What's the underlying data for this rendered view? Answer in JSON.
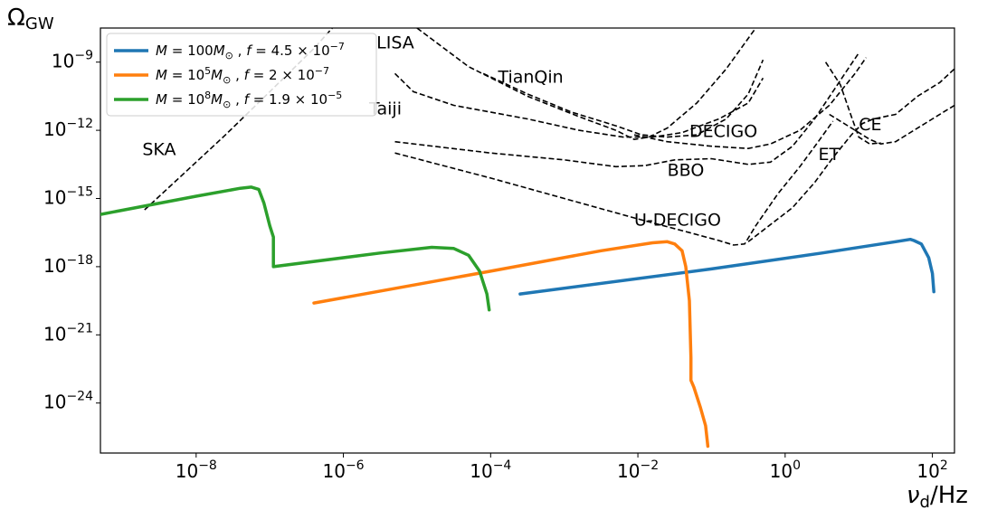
{
  "chart_data": {
    "type": "line",
    "xlabel_main": "ν",
    "xlabel_sub": "d",
    "xlabel_rest": "/Hz",
    "ylabel_main": "Ω",
    "ylabel_sub": "GW",
    "x_scale": "log",
    "y_scale": "log",
    "x_log_range": [
      -9.3,
      2.3
    ],
    "y_log_range": [
      -26.2,
      -7.5
    ],
    "grid": false,
    "legend_position": "top-left",
    "x_ticks": [
      {
        "exp": -8,
        "base": "10",
        "sup": "−8"
      },
      {
        "exp": -6,
        "base": "10",
        "sup": "−6"
      },
      {
        "exp": -4,
        "base": "10",
        "sup": "−4"
      },
      {
        "exp": -2,
        "base": "10",
        "sup": "−2"
      },
      {
        "exp": 0,
        "base": "10",
        "sup": "0"
      },
      {
        "exp": 2,
        "base": "10",
        "sup": "2"
      }
    ],
    "y_ticks": [
      {
        "exp": -9,
        "base": "10",
        "sup": "−9"
      },
      {
        "exp": -12,
        "base": "10",
        "sup": "−12"
      },
      {
        "exp": -15,
        "base": "10",
        "sup": "−15"
      },
      {
        "exp": -18,
        "base": "10",
        "sup": "−18"
      },
      {
        "exp": -21,
        "base": "10",
        "sup": "−21"
      },
      {
        "exp": -24,
        "base": "10",
        "sup": "−24"
      }
    ],
    "series": [
      {
        "name": "M = 100M⊙ , f = 4.5 × 10⁻⁷",
        "color": "#1f77b4",
        "points": [
          [
            -3.6,
            -19.2
          ],
          [
            -1.0,
            -18.1
          ],
          [
            0.5,
            -17.4
          ],
          [
            1.5,
            -16.9
          ],
          [
            1.7,
            -16.8
          ],
          [
            1.75,
            -16.85
          ],
          [
            1.85,
            -17.0
          ],
          [
            1.95,
            -17.6
          ],
          [
            2.0,
            -18.3
          ],
          [
            2.02,
            -19.1
          ]
        ]
      },
      {
        "name": "M = 10⁵M⊙ , f = 2 × 10⁻⁷",
        "color": "#ff7f0e",
        "points": [
          [
            -6.4,
            -19.6
          ],
          [
            -4.0,
            -18.2
          ],
          [
            -2.5,
            -17.3
          ],
          [
            -1.8,
            -16.95
          ],
          [
            -1.6,
            -16.9
          ],
          [
            -1.5,
            -17.0
          ],
          [
            -1.4,
            -17.3
          ],
          [
            -1.35,
            -18.0
          ],
          [
            -1.3,
            -19.5
          ],
          [
            -1.28,
            -22.0
          ],
          [
            -1.28,
            -23.0
          ],
          [
            -1.24,
            -23.3
          ],
          [
            -1.15,
            -24.2
          ],
          [
            -1.08,
            -25.0
          ],
          [
            -1.05,
            -25.9
          ]
        ]
      },
      {
        "name": "M = 10⁸M⊙ , f = 1.9 × 10⁻⁵",
        "color": "#2ca02c",
        "points": [
          [
            -9.3,
            -15.7
          ],
          [
            -8.0,
            -14.9
          ],
          [
            -7.4,
            -14.55
          ],
          [
            -7.25,
            -14.5
          ],
          [
            -7.15,
            -14.6
          ],
          [
            -7.08,
            -15.2
          ],
          [
            -7.0,
            -16.2
          ],
          [
            -6.95,
            -16.7
          ],
          [
            -6.95,
            -18.0
          ],
          [
            -5.5,
            -17.4
          ],
          [
            -4.8,
            -17.15
          ],
          [
            -4.5,
            -17.2
          ],
          [
            -4.3,
            -17.5
          ],
          [
            -4.15,
            -18.2
          ],
          [
            -4.05,
            -19.2
          ],
          [
            -4.02,
            -19.9
          ]
        ]
      }
    ],
    "detectors": [
      {
        "name": "SKA",
        "points": [
          [
            -8.7,
            -15.5
          ],
          [
            -8.2,
            -14.0
          ],
          [
            -7.6,
            -12.2
          ],
          [
            -7.0,
            -10.3
          ],
          [
            -6.4,
            -8.4
          ],
          [
            -6.15,
            -7.5
          ]
        ]
      },
      {
        "name": "LISA",
        "points": [
          [
            -5.0,
            -7.5
          ],
          [
            -4.3,
            -9.2
          ],
          [
            -3.5,
            -10.5
          ],
          [
            -2.8,
            -11.4
          ],
          [
            -2.3,
            -12.0
          ],
          [
            -2.05,
            -12.4
          ],
          [
            -1.85,
            -12.3
          ],
          [
            -1.6,
            -11.9
          ],
          [
            -1.2,
            -10.8
          ],
          [
            -0.8,
            -9.3
          ],
          [
            -0.4,
            -7.5
          ]
        ]
      },
      {
        "name": "TianQin",
        "points": [
          [
            -4.1,
            -9.5
          ],
          [
            -3.5,
            -10.4
          ],
          [
            -2.9,
            -11.2
          ],
          [
            -2.3,
            -11.8
          ],
          [
            -1.95,
            -12.2
          ],
          [
            -1.6,
            -12.3
          ],
          [
            -1.2,
            -12.2
          ],
          [
            -0.8,
            -11.5
          ],
          [
            -0.5,
            -10.4
          ],
          [
            -0.3,
            -8.9
          ]
        ]
      },
      {
        "name": "Taiji",
        "points": [
          [
            -5.3,
            -9.5
          ],
          [
            -5.05,
            -10.3
          ],
          [
            -4.5,
            -10.9
          ],
          [
            -3.5,
            -11.5
          ],
          [
            -2.8,
            -12.0
          ],
          [
            -2.2,
            -12.3
          ],
          [
            -1.8,
            -12.3
          ],
          [
            -1.4,
            -12.1
          ],
          [
            -0.9,
            -11.5
          ],
          [
            -0.5,
            -10.8
          ],
          [
            -0.3,
            -9.7
          ]
        ]
      },
      {
        "name": "BBO",
        "points": [
          [
            -5.3,
            -12.5
          ],
          [
            -4.0,
            -13.0
          ],
          [
            -3.0,
            -13.3
          ],
          [
            -2.3,
            -13.6
          ],
          [
            -1.9,
            -13.55
          ],
          [
            -1.5,
            -13.3
          ],
          [
            -1.0,
            -13.25
          ],
          [
            -0.5,
            -13.5
          ],
          [
            -0.2,
            -13.4
          ],
          [
            0.1,
            -12.7
          ],
          [
            0.4,
            -11.5
          ],
          [
            0.75,
            -9.8
          ],
          [
            1.0,
            -8.6
          ]
        ]
      },
      {
        "name": "DECIGO",
        "points": [
          [
            -2.05,
            -12.2
          ],
          [
            -1.6,
            -12.5
          ],
          [
            -1.0,
            -12.7
          ],
          [
            -0.5,
            -12.8
          ],
          [
            -0.2,
            -12.6
          ],
          [
            0.2,
            -12.0
          ],
          [
            0.6,
            -10.9
          ],
          [
            0.95,
            -9.5
          ],
          [
            1.1,
            -8.8
          ]
        ]
      },
      {
        "name": "U-DECIGO",
        "points": [
          [
            -5.3,
            -13.0
          ],
          [
            -4.0,
            -14.1
          ],
          [
            -3.0,
            -15.0
          ],
          [
            -2.0,
            -15.9
          ],
          [
            -1.3,
            -16.5
          ],
          [
            -0.9,
            -16.85
          ],
          [
            -0.7,
            -17.05
          ],
          [
            -0.55,
            -17.0
          ],
          [
            -0.4,
            -16.2
          ],
          [
            -0.1,
            -14.8
          ],
          [
            0.2,
            -13.6
          ],
          [
            0.45,
            -12.5
          ],
          [
            0.65,
            -11.6
          ]
        ]
      },
      {
        "name": "ET",
        "points": [
          [
            -0.5,
            -16.9
          ],
          [
            0.1,
            -15.4
          ],
          [
            0.4,
            -14.3
          ],
          [
            0.65,
            -13.2
          ],
          [
            0.9,
            -12.2
          ],
          [
            1.05,
            -11.7
          ],
          [
            1.2,
            -11.5
          ],
          [
            1.5,
            -11.3
          ],
          [
            1.8,
            -10.5
          ],
          [
            2.1,
            -9.9
          ],
          [
            2.3,
            -9.3
          ]
        ]
      },
      {
        "name": "CE",
        "points": [
          [
            0.6,
            -11.3
          ],
          [
            0.9,
            -11.9
          ],
          [
            1.15,
            -12.4
          ],
          [
            1.3,
            -12.6
          ],
          [
            1.5,
            -12.5
          ],
          [
            1.75,
            -12.0
          ],
          [
            2.0,
            -11.5
          ],
          [
            2.3,
            -10.9
          ]
        ]
      },
      {
        "name": "ET_branch",
        "points": [
          [
            0.55,
            -9.0
          ],
          [
            0.75,
            -10.0
          ],
          [
            0.9,
            -11.4
          ],
          [
            1.0,
            -12.3
          ],
          [
            1.15,
            -12.6
          ],
          [
            1.3,
            -12.55
          ]
        ]
      }
    ],
    "detector_labels": [
      {
        "text": "SKA",
        "x": -8.73,
        "y": -13.1
      },
      {
        "text": "LISA",
        "x": -5.55,
        "y": -8.4
      },
      {
        "text": "TianQin",
        "x": -3.9,
        "y": -9.9
      },
      {
        "text": "Taiji",
        "x": -5.65,
        "y": -11.3
      },
      {
        "text": "DECIGO",
        "x": -1.3,
        "y": -12.3
      },
      {
        "text": "BBO",
        "x": -1.6,
        "y": -14.0
      },
      {
        "text": "U-DECIGO",
        "x": -2.05,
        "y": -16.2
      },
      {
        "text": "ET",
        "x": 0.45,
        "y": -13.3
      },
      {
        "text": "CE",
        "x": 1.0,
        "y": -12.0
      }
    ],
    "legend": [
      {
        "m_sup": "",
        "m_val": "100",
        "f_val": "4.5",
        "f_sup": "−7"
      },
      {
        "m_sup": "5",
        "m_val": "10",
        "f_val": "2",
        "f_sup": "−7"
      },
      {
        "m_sup": "8",
        "m_val": "10",
        "f_val": "1.9",
        "f_sup": "−5"
      }
    ]
  }
}
